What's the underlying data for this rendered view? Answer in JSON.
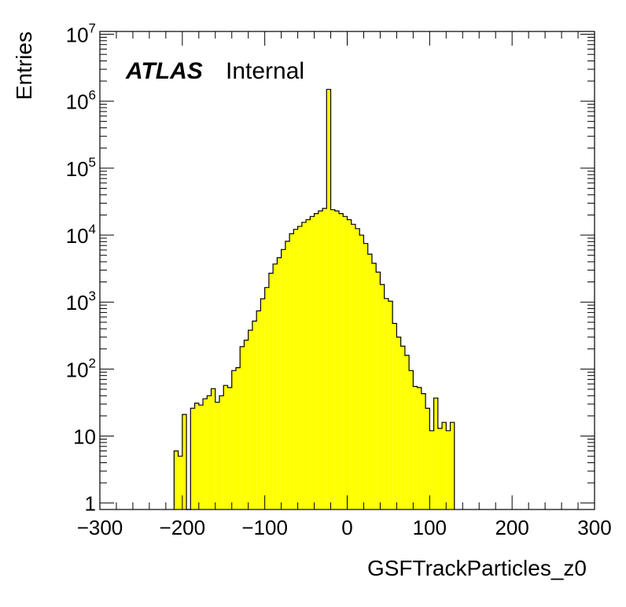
{
  "chart_data": {
    "type": "histogram",
    "xlabel": "GSFTrackParticles_z0",
    "ylabel": "Entries",
    "label_main": "ATLAS",
    "label_sub": "Internal",
    "xlim": [
      -300,
      300
    ],
    "ylim": [
      0.8,
      11000000
    ],
    "yscale": "log",
    "fill_color": "#ffff00",
    "line_color": "#000000",
    "x_tick_labels": [
      "−300",
      "−200",
      "−100",
      "0",
      "100",
      "200",
      "300"
    ],
    "y_tick_labels": [
      {
        "base": "1",
        "exp": ""
      },
      {
        "base": "10",
        "exp": ""
      },
      {
        "base": "10",
        "exp": "2"
      },
      {
        "base": "10",
        "exp": "3"
      },
      {
        "base": "10",
        "exp": "4"
      },
      {
        "base": "10",
        "exp": "5"
      },
      {
        "base": "10",
        "exp": "6"
      },
      {
        "base": "10",
        "exp": "7"
      }
    ],
    "bin_width": 5,
    "bin_edges_start": -210,
    "values": [
      6,
      5,
      21,
      0,
      26,
      31,
      29,
      36,
      40,
      51,
      32,
      40,
      57,
      53,
      95,
      105,
      216,
      270,
      380,
      520,
      740,
      1120,
      1650,
      2700,
      3700,
      4600,
      6100,
      8100,
      10500,
      12200,
      13500,
      15500,
      17000,
      19000,
      21000,
      23000,
      25000,
      1500000,
      24000,
      23000,
      21000,
      19000,
      17000,
      14500,
      12500,
      10000,
      7500,
      5200,
      3800,
      2800,
      1830,
      1130,
      1030,
      480,
      300,
      220,
      160,
      95,
      55,
      53,
      43,
      26,
      12,
      37,
      13,
      16,
      12,
      16
    ]
  }
}
